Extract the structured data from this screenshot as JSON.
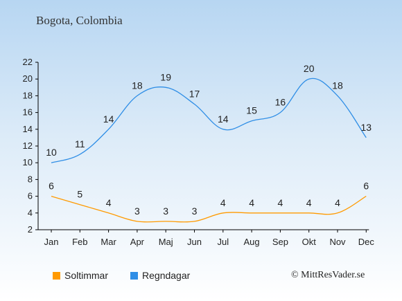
{
  "title": "Bogota, Colombia",
  "credit": "© MittResVader.se",
  "colors": {
    "sun": "#ff9a00",
    "rain": "#2f8ee6"
  },
  "chart_data": {
    "type": "line",
    "categories": [
      "Jan",
      "Feb",
      "Mar",
      "Apr",
      "Maj",
      "Jun",
      "Jul",
      "Aug",
      "Sep",
      "Okt",
      "Nov",
      "Dec"
    ],
    "series": [
      {
        "name": "Soltimmar",
        "values": [
          6,
          5,
          4,
          3,
          3,
          3,
          4,
          4,
          4,
          4,
          4,
          6
        ],
        "color": "#ff9a00"
      },
      {
        "name": "Regndagar",
        "values": [
          10,
          11,
          14,
          18,
          19,
          17,
          14,
          15,
          16,
          20,
          18,
          13
        ],
        "color": "#2f8ee6"
      }
    ],
    "yticks": [
      "2",
      "4",
      "6",
      "8",
      "10",
      "12",
      "14",
      "16",
      "18",
      "20",
      "22"
    ],
    "ylim": [
      2,
      22
    ],
    "grid": false,
    "legend": "bottom-left"
  }
}
